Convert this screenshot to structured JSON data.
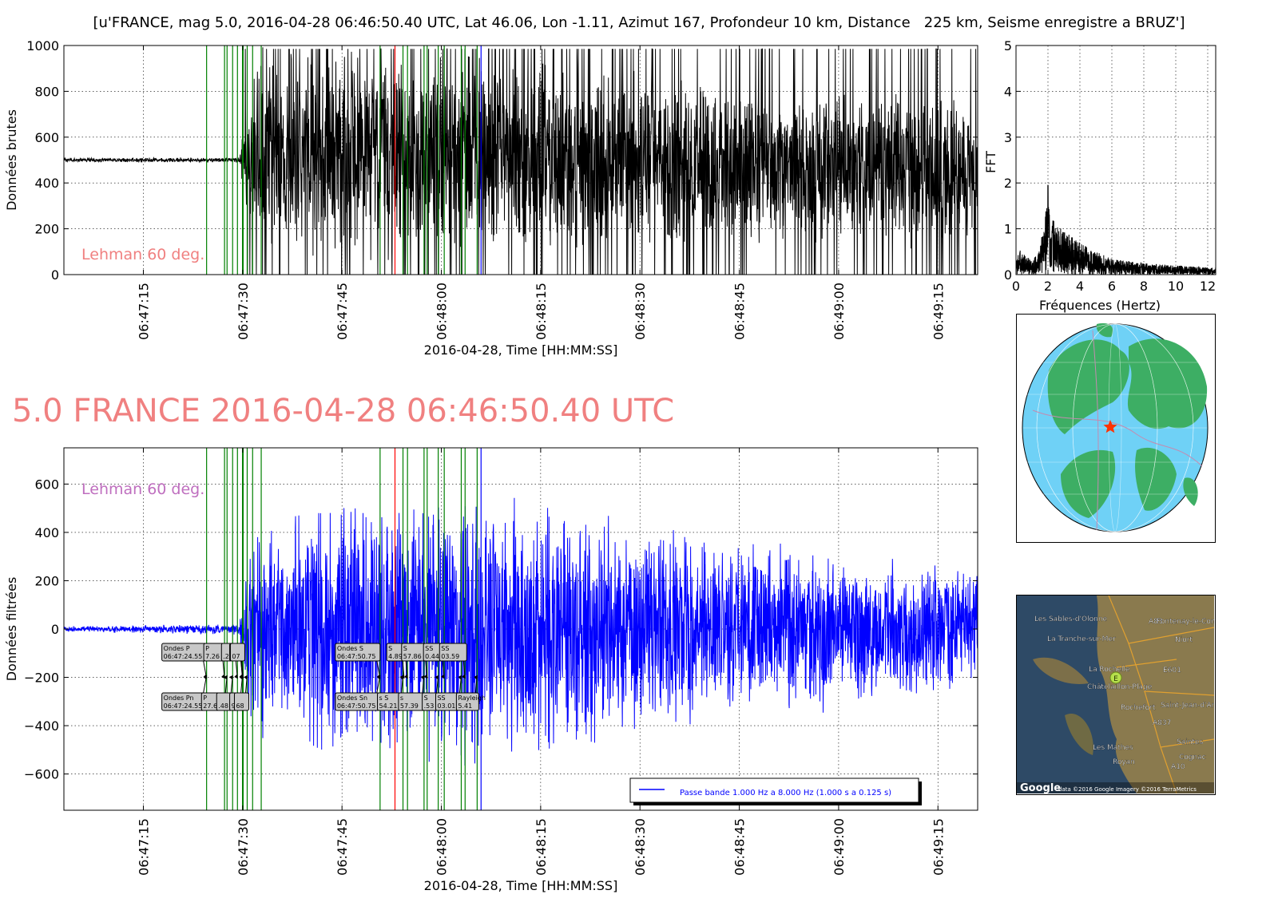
{
  "page_title": "[u'FRANCE, mag 5.0, 2016-04-28 06:46:50.40 UTC, Lat 46.06, Lon -1.11, Azimut 167, Profondeur 10 km, Distance   225 km, Seisme enregistre a BRUZ']",
  "big_title": "5.0 FRANCE 2016-04-28 06:46:50.40 UTC",
  "chart_data": [
    {
      "type": "line",
      "id": "raw",
      "xlabel": "2016-04-28, Time [HH:MM:SS]",
      "ylabel": "Données brutes",
      "ylim": [
        0,
        1000
      ],
      "xlim": [
        "06:47:03",
        "06:49:21"
      ],
      "x_ticks": [
        "06:47:15",
        "06:47:30",
        "06:47:45",
        "06:48:00",
        "06:48:15",
        "06:48:30",
        "06:48:45",
        "06:49:00",
        "06:49:15"
      ],
      "y_ticks": [
        "0",
        "200",
        "400",
        "600",
        "800",
        "1000"
      ],
      "grid": true,
      "annotation": "Lehman 60 deg.",
      "series_color": "#000000",
      "phase_lines_green": [
        "06:47:24.55",
        "06:47:27.26",
        "06:47:27.64",
        "06:47:28.48",
        "06:47:29.21",
        "06:47:29.97",
        "06:47:30.07",
        "06:47:30.68",
        "06:47:31.5",
        "06:47:32.8",
        "06:47:50.75",
        "06:47:54.21",
        "06:47:54.89",
        "06:47:57.39",
        "06:47:57.86",
        "06:47:59.53",
        "06:48:00.44",
        "06:48:03.01",
        "06:48:03.59",
        "06:48:05.41"
      ],
      "phase_lines_red": [
        "06:47:53.0"
      ],
      "phase_lines_blue": [
        "06:48:06.0"
      ],
      "trace_profile": [
        [
          "06:47:03",
          500,
          10
        ],
        [
          "06:47:29.5",
          500,
          12
        ],
        [
          "06:47:31",
          520,
          380
        ],
        [
          "06:47:32",
          530,
          470
        ],
        [
          "06:48:05",
          520,
          480
        ],
        [
          "06:48:40",
          480,
          400
        ],
        [
          "06:49:21",
          450,
          330
        ]
      ]
    },
    {
      "type": "line",
      "id": "fft",
      "xlabel": "Fréquences (Hertz)",
      "ylabel": "FFT",
      "xlim": [
        0,
        12.5
      ],
      "ylim": [
        0,
        5
      ],
      "x_ticks": [
        "0",
        "2",
        "4",
        "6",
        "8",
        "10",
        "12"
      ],
      "y_ticks": [
        "0",
        "1",
        "2",
        "3",
        "4",
        "5"
      ],
      "grid": true,
      "series_color": "#000000",
      "peak": {
        "x": 2.0,
        "y": 1.95
      },
      "envelope": [
        [
          0,
          0.3
        ],
        [
          0.2,
          0.55
        ],
        [
          1,
          0.3
        ],
        [
          1.5,
          0.55
        ],
        [
          1.8,
          1.3
        ],
        [
          2.0,
          1.95
        ],
        [
          2.3,
          1.2
        ],
        [
          3,
          0.95
        ],
        [
          4,
          0.7
        ],
        [
          5,
          0.5
        ],
        [
          6,
          0.35
        ],
        [
          8,
          0.25
        ],
        [
          10,
          0.2
        ],
        [
          12.5,
          0.15
        ]
      ]
    },
    {
      "type": "line",
      "id": "filtered",
      "xlabel": "2016-04-28, Time [HH:MM:SS]",
      "ylabel": "Données filtrées",
      "xlim": [
        "06:47:03",
        "06:49:21"
      ],
      "ylim": [
        -750,
        750
      ],
      "x_ticks": [
        "06:47:15",
        "06:47:30",
        "06:47:45",
        "06:48:00",
        "06:48:15",
        "06:48:30",
        "06:48:45",
        "06:49:00",
        "06:49:15"
      ],
      "y_ticks": [
        "600",
        "400",
        "200",
        "0",
        "−200",
        "−400",
        "−600"
      ],
      "grid": true,
      "annotation": "Lehman 60 deg.",
      "series_color": "#0000ff",
      "legend": {
        "label": "Passe bande 1.000 Hz a 8.000 Hz (1.000 s a 0.125 s)",
        "placement": "lower-right"
      },
      "phase_lines_green": [
        "06:47:24.55",
        "06:47:27.26",
        "06:47:27.64",
        "06:47:28.48",
        "06:47:29.21",
        "06:47:29.97",
        "06:47:30.07",
        "06:47:30.68",
        "06:47:31.5",
        "06:47:32.8",
        "06:47:50.75",
        "06:47:54.21",
        "06:47:54.89",
        "06:47:57.39",
        "06:47:57.86",
        "06:47:59.53",
        "06:48:00.44",
        "06:48:03.01",
        "06:48:03.59",
        "06:48:05.41"
      ],
      "phase_lines_red": [
        "06:47:53.0"
      ],
      "phase_lines_blue": [
        "06:48:06.0"
      ],
      "trace_profile": [
        [
          "06:47:03",
          0,
          12
        ],
        [
          "06:47:29.5",
          0,
          25
        ],
        [
          "06:47:31",
          0,
          420
        ],
        [
          "06:47:40",
          0,
          580
        ],
        [
          "06:48:05",
          0,
          620
        ],
        [
          "06:48:40",
          0,
          420
        ],
        [
          "06:49:21",
          0,
          260
        ]
      ],
      "phase_labels_top": [
        {
          "t": "06:47:24.55",
          "l1": "Ondes P",
          "l2": "06:47:24.55"
        },
        {
          "t": "06:47:27.26",
          "l1": "P",
          "l2": "7.26"
        },
        {
          "t": "06:47:29.21",
          "l1": "",
          "l2": ".21"
        },
        {
          "t": "06:47:29.97",
          "l1": "",
          "l2": ".9"
        },
        {
          "t": "06:47:30.07",
          "l1": "",
          "l2": "07"
        },
        {
          "t": "06:47:50.75",
          "l1": "Ondes S",
          "l2": "06:47:50.75"
        },
        {
          "t": "06:47:54.39",
          "l1": "ve S",
          "l2": ".39"
        },
        {
          "t": "06:47:54.89",
          "l1": "S",
          "l2": "4.89"
        },
        {
          "t": "06:47:57.86",
          "l1": "S",
          "l2": "57.86"
        },
        {
          "t": "06:48:00.44",
          "l1": "SS",
          "l2": "0.44"
        },
        {
          "t": "06:48:03.59",
          "l1": "SS",
          "l2": "03.59"
        }
      ],
      "phase_labels_bottom": [
        {
          "t": "06:47:24.55",
          "l1": "Ondes Pn",
          "l2": "06:47:24.55"
        },
        {
          "t": "06:47:27.64",
          "l1": "P",
          "l2": "27.64"
        },
        {
          "t": "06:47:28.48",
          "l1": "",
          "l2": ".48"
        },
        {
          "t": "06:47:29.97",
          "l1": "",
          "l2": "97"
        },
        {
          "t": "06:47:30.68",
          "l1": "",
          "l2": "68"
        },
        {
          "t": "06:47:50.75",
          "l1": "Ondes Sn",
          "l2": "06:47:50.75"
        },
        {
          "t": "06:47:54.21",
          "l1": "s S",
          "l2": "54.21"
        },
        {
          "t": "06:47:57.39",
          "l1": "s",
          "l2": "57.39"
        },
        {
          "t": "06:47:59.53",
          "l1": "S",
          "l2": ".53"
        },
        {
          "t": "06:48:03.01",
          "l1": "SS",
          "l2": "03.01"
        },
        {
          "t": "06:48:05.41",
          "l1": "Rayleigh",
          "l2": "5.41"
        }
      ]
    }
  ],
  "globe": {
    "ocean_color": "#6fd1f6",
    "land_color": "#3dae64",
    "border_color": "#c48bb0",
    "marker": "red-star",
    "marker_color": "#ff3300"
  },
  "map": {
    "labels": [
      "Les Sables-d'Olonne",
      "Fontenay-le-Com",
      "A83",
      "Niort",
      "La Tranche-sur-Mer",
      "La Rochelle",
      "E601",
      "Châtelaillon-Plage",
      "Rochefort",
      "Saint-Jean-d'Ange",
      "A837",
      "Saintes",
      "Les Mathes",
      "Cognac",
      "Royan",
      "A10"
    ],
    "marker_label": "E",
    "google_logo": "Google",
    "credit": "data ©2016 Google  Imagery ©2016 TerraMetrics"
  }
}
